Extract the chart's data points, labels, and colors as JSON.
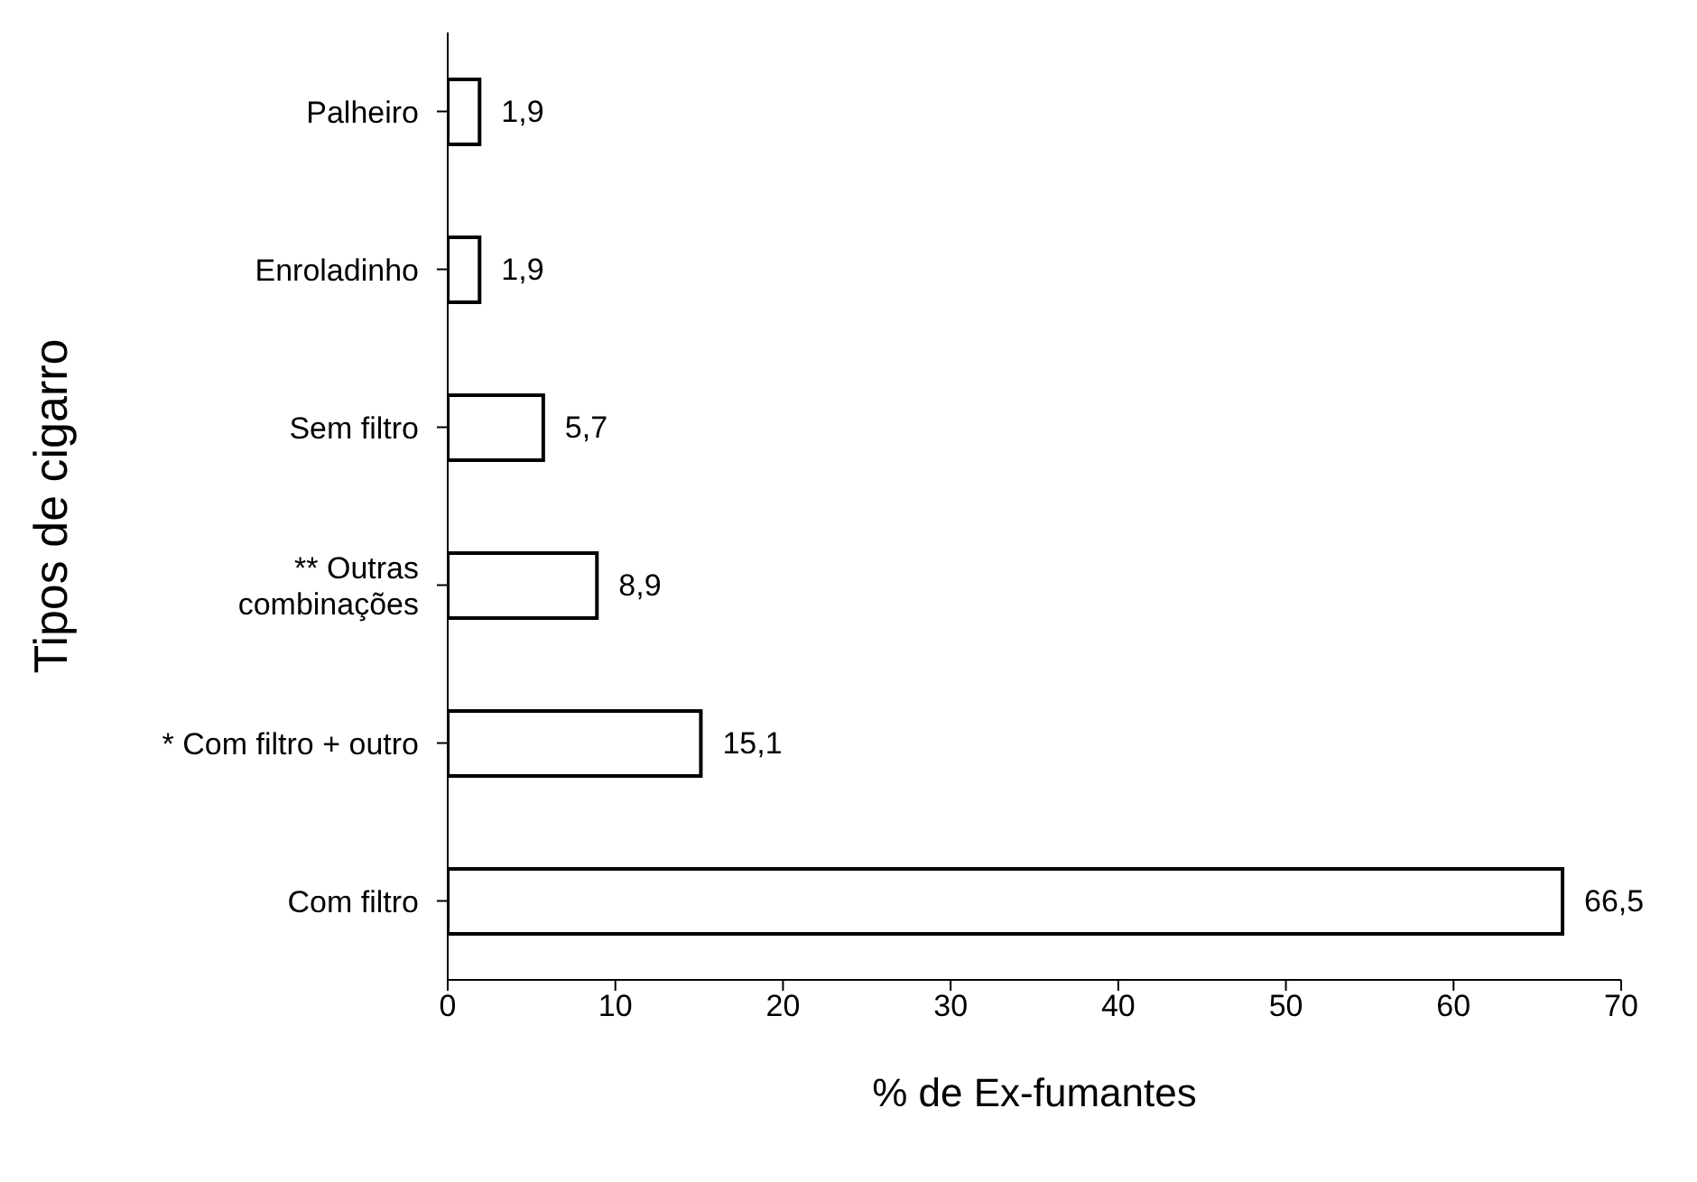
{
  "chart_data": {
    "type": "bar",
    "orientation": "horizontal",
    "xlabel": "% de Ex-fumantes",
    "ylabel": "Tipos de cigarro",
    "categories": [
      "Palheiro",
      "Enroladinho",
      "Sem filtro",
      "** Outras combinações",
      "* Com filtro + outro",
      "Com filtro"
    ],
    "values": [
      1.9,
      1.9,
      5.7,
      8.9,
      15.1,
      66.5
    ],
    "value_labels": [
      "1,9",
      "1,9",
      "5,7",
      "8,9",
      "15,1",
      "66,5"
    ],
    "color": "#ffffff",
    "xlim": [
      0,
      70
    ],
    "xticks": [
      0,
      10,
      20,
      30,
      40,
      50,
      60,
      70
    ],
    "grid": false,
    "legend": false
  }
}
